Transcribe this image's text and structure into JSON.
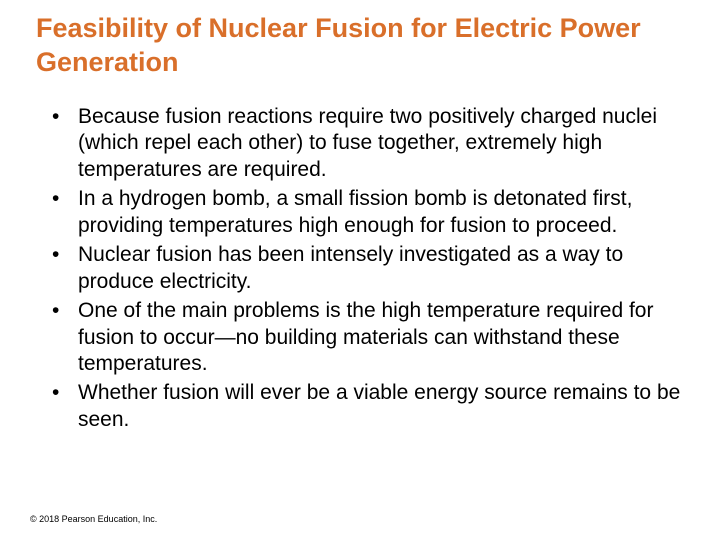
{
  "title_color": "#d96f2a",
  "title": "Feasibility of Nuclear Fusion for Electric Power Generation",
  "bullets": [
    "Because fusion reactions require two positively charged nuclei (which repel each other) to fuse together, extremely high temperatures are required.",
    "In a hydrogen bomb, a small fission bomb is detonated first, providing temperatures high enough for fusion to proceed.",
    "Nuclear fusion has been intensely investigated as a way to produce electricity.",
    "One of the main problems is the high temperature required for fusion to occur—no building materials can withstand these temperatures.",
    "Whether fusion will ever be a viable energy source remains to be seen."
  ],
  "copyright": "© 2018 Pearson Education, Inc."
}
